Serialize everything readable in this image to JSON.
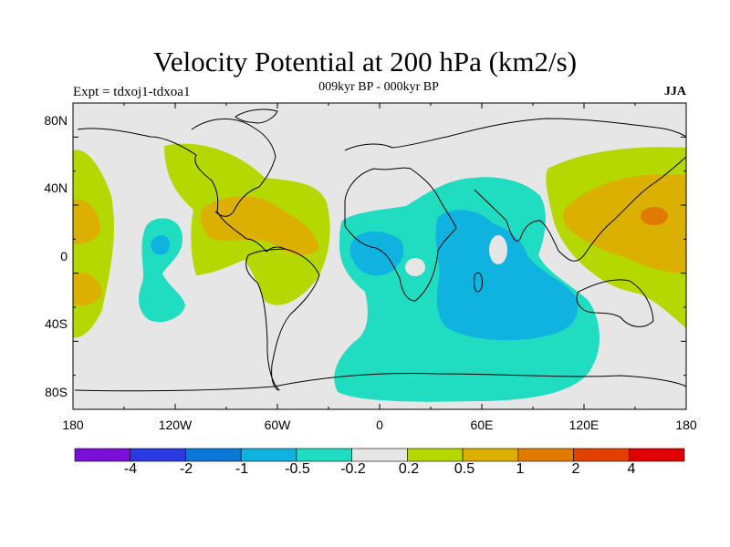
{
  "header": {
    "title": "Velocity Potential at 200 hPa (km2/s)",
    "subtitle": "009kyr BP - 000kyr BP",
    "left_label": "Expt = tdxoj1-tdxoa1",
    "right_label": "JJA"
  },
  "map": {
    "projection": "cylindrical equidistant",
    "lon_range": [
      -180,
      180
    ],
    "lat_range": [
      -90,
      90
    ],
    "lat_ticks": [
      "80N",
      "40N",
      "0",
      "40S",
      "80S"
    ],
    "lon_ticks": [
      "180",
      "120W",
      "60W",
      "0",
      "60E",
      "120E",
      "180"
    ],
    "background_color": "#e6e6e6"
  },
  "colorbar": {
    "colors": [
      "#7a10d8",
      "#2a3adf",
      "#0a78d6",
      "#10b2e0",
      "#20dcc0",
      "#e6e6e6",
      "#b4d800",
      "#dcb000",
      "#e07a00",
      "#e04000",
      "#e00000"
    ],
    "labels": [
      "-4",
      "-2",
      "-1",
      "-0.5",
      "-0.2",
      "0.2",
      "0.5",
      "1",
      "2",
      "4"
    ]
  }
}
